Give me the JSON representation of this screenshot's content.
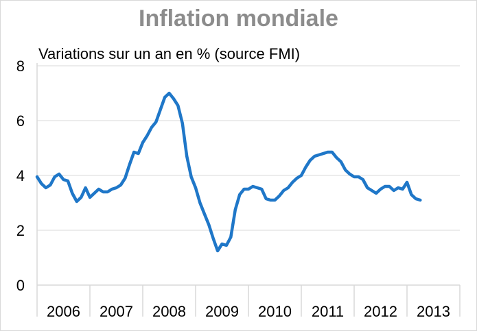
{
  "chart_data": {
    "type": "line",
    "title": "Inflation mondiale",
    "subtitle": "Variations sur un an en % (source FMI)",
    "xlabel": "",
    "ylabel": "",
    "ylim": [
      0,
      8
    ],
    "yticks": [
      "0",
      "2",
      "4",
      "6",
      "8"
    ],
    "categories": [
      "2006",
      "2007",
      "2008",
      "2009",
      "2010",
      "2011",
      "2012",
      "2013"
    ],
    "grid": "horizontal",
    "colors": {
      "line": "#1f77c8",
      "grid": "#d9d9d9",
      "title": "#8c8c8c"
    },
    "series": [
      {
        "x": [
          "2006-01",
          "2006-02",
          "2006-03",
          "2006-04",
          "2006-05",
          "2006-06",
          "2006-07",
          "2006-08",
          "2006-09",
          "2006-10",
          "2006-11",
          "2006-12",
          "2007-01",
          "2007-02",
          "2007-03",
          "2007-04",
          "2007-05",
          "2007-06",
          "2007-07",
          "2007-08",
          "2007-09",
          "2007-10",
          "2007-11",
          "2007-12",
          "2008-01",
          "2008-02",
          "2008-03",
          "2008-04",
          "2008-05",
          "2008-06",
          "2008-07",
          "2008-08",
          "2008-09",
          "2008-10",
          "2008-11",
          "2008-12",
          "2009-01",
          "2009-02",
          "2009-03",
          "2009-04",
          "2009-05",
          "2009-06",
          "2009-07",
          "2009-08",
          "2009-09",
          "2009-10",
          "2009-11",
          "2009-12",
          "2010-01",
          "2010-02",
          "2010-03",
          "2010-04",
          "2010-05",
          "2010-06",
          "2010-07",
          "2010-08",
          "2010-09",
          "2010-10",
          "2010-11",
          "2010-12",
          "2011-01",
          "2011-02",
          "2011-03",
          "2011-04",
          "2011-05",
          "2011-06",
          "2011-07",
          "2011-08",
          "2011-09",
          "2011-10",
          "2011-11",
          "2011-12",
          "2012-01",
          "2012-02",
          "2012-03",
          "2012-04",
          "2012-05",
          "2012-06",
          "2012-07",
          "2012-08",
          "2012-09",
          "2012-10",
          "2012-11",
          "2012-12",
          "2013-01",
          "2013-02",
          "2013-03",
          "2013-04"
        ],
        "values": [
          3.95,
          3.7,
          3.55,
          3.65,
          3.95,
          4.05,
          3.85,
          3.8,
          3.35,
          3.05,
          3.2,
          3.55,
          3.2,
          3.35,
          3.5,
          3.4,
          3.4,
          3.5,
          3.55,
          3.65,
          3.9,
          4.4,
          4.85,
          4.8,
          5.2,
          5.45,
          5.75,
          5.95,
          6.4,
          6.85,
          7.0,
          6.8,
          6.55,
          5.9,
          4.7,
          3.95,
          3.55,
          3.0,
          2.6,
          2.2,
          1.7,
          1.25,
          1.5,
          1.45,
          1.75,
          2.75,
          3.3,
          3.5,
          3.5,
          3.6,
          3.55,
          3.5,
          3.15,
          3.1,
          3.1,
          3.25,
          3.45,
          3.55,
          3.75,
          3.9,
          4.0,
          4.3,
          4.55,
          4.7,
          4.75,
          4.8,
          4.85,
          4.85,
          4.65,
          4.5,
          4.2,
          4.05,
          3.95,
          3.95,
          3.85,
          3.55,
          3.45,
          3.35,
          3.5,
          3.6,
          3.6,
          3.45,
          3.55,
          3.5,
          3.75,
          3.3,
          3.15,
          3.1
        ]
      }
    ]
  }
}
